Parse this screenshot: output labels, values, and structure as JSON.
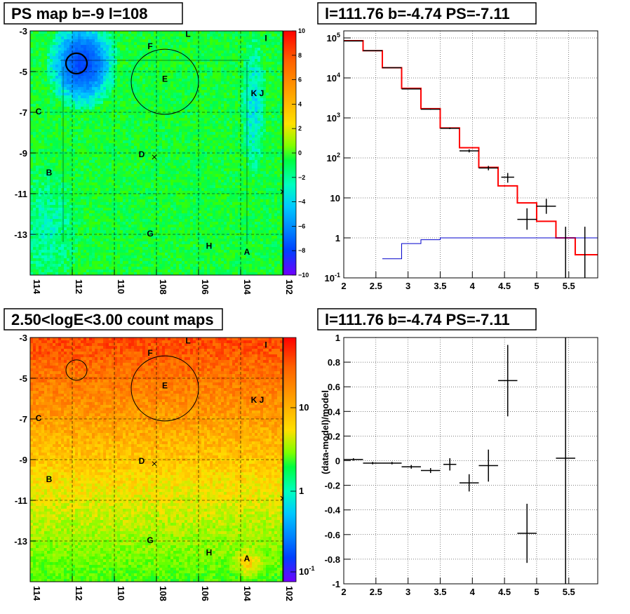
{
  "panels": {
    "tl": {
      "title": "PS map b=-9 l=108"
    },
    "tr": {
      "title": "l=111.76 b=-4.74 PS=-7.11"
    },
    "bl": {
      "title": "2.50<logE<3.00 count maps"
    },
    "br": {
      "title": "l=111.76 b=-4.74 PS=-7.11"
    }
  },
  "chart_data": [
    {
      "type": "heatmap",
      "title": "PS map b=-9 l=108",
      "x_ticks": [
        "114",
        "112",
        "110",
        "108",
        "106",
        "104",
        "102"
      ],
      "y_ticks": [
        "-3",
        "-5",
        "-7",
        "-9",
        "-11",
        "-13"
      ],
      "xlim": [
        114,
        102
      ],
      "ylim": [
        -15,
        -3
      ],
      "colorbar": {
        "min": -10,
        "max": 10,
        "ticks": [
          "10",
          "8",
          "6",
          "4",
          "2",
          "0",
          "−2",
          "−4",
          "−6",
          "−8",
          "−10"
        ]
      },
      "labels": [
        {
          "text": "L",
          "l": 106.5,
          "b": -3.3
        },
        {
          "text": "I",
          "l": 102.8,
          "b": -3.5
        },
        {
          "text": "F",
          "l": 108.3,
          "b": -3.9
        },
        {
          "text": "E",
          "l": 107.6,
          "b": -5.5
        },
        {
          "text": "K J",
          "l": 103.2,
          "b": -6.2
        },
        {
          "text": "C",
          "l": 113.6,
          "b": -7.1
        },
        {
          "text": "D",
          "l": 108.7,
          "b": -9.2
        },
        {
          "text": "B",
          "l": 113.1,
          "b": -10.1
        },
        {
          "text": "G",
          "l": 108.3,
          "b": -13.1
        },
        {
          "text": "H",
          "l": 105.5,
          "b": -13.7
        },
        {
          "text": "A",
          "l": 103.7,
          "b": -14.0
        }
      ],
      "circles": [
        {
          "l": 111.8,
          "b": -4.6,
          "r": 0.5
        },
        {
          "l": 107.6,
          "b": -5.5,
          "r": 1.6
        }
      ],
      "crosses": [
        {
          "l": 108.1,
          "b": -9.2
        },
        {
          "l": 102.0,
          "b": -10.9
        }
      ]
    },
    {
      "type": "line",
      "title": "l=111.76 b=-4.74 PS=-7.11",
      "y_scale": "log",
      "xlim": [
        2,
        5.95
      ],
      "ylim": [
        0.1,
        150000
      ],
      "x_ticks": [
        "2",
        "2.5",
        "3",
        "3.5",
        "4",
        "4.5",
        "5",
        "5.5"
      ],
      "y_ticks": [
        "10^-1",
        "1",
        "10",
        "10^2",
        "10^3",
        "10^4",
        "10^5"
      ],
      "series": [
        {
          "color": "#ff0000",
          "bins": [
            [
              2.0,
              2.3,
              85000
            ],
            [
              2.3,
              2.6,
              48000
            ],
            [
              2.6,
              2.9,
              18000
            ],
            [
              2.9,
              3.2,
              5500
            ],
            [
              3.2,
              3.5,
              1700
            ],
            [
              3.5,
              3.8,
              560
            ],
            [
              3.8,
              4.1,
              180
            ],
            [
              4.1,
              4.4,
              58
            ],
            [
              4.4,
              4.7,
              20
            ],
            [
              4.7,
              5.0,
              7.5
            ],
            [
              5.0,
              5.3,
              2.6
            ],
            [
              5.3,
              5.6,
              1.0
            ],
            [
              5.6,
              5.95,
              0.38
            ]
          ]
        },
        {
          "color": "#0000cc",
          "bins": [
            [
              2.6,
              2.9,
              0.3
            ],
            [
              2.9,
              3.2,
              0.72
            ],
            [
              3.2,
              3.5,
              0.9
            ],
            [
              3.5,
              5.95,
              1.0
            ]
          ]
        }
      ],
      "points": [
        {
          "x": 2.15,
          "y": 84000,
          "xerr": 0.15,
          "ylo": 83500,
          "yhi": 84500
        },
        {
          "x": 2.45,
          "y": 48000,
          "xerr": 0.15,
          "ylo": 47700,
          "yhi": 48300
        },
        {
          "x": 2.75,
          "y": 18000,
          "xerr": 0.15,
          "ylo": 17800,
          "yhi": 18200
        },
        {
          "x": 3.05,
          "y": 5300,
          "xerr": 0.15,
          "ylo": 5200,
          "yhi": 5400
        },
        {
          "x": 3.35,
          "y": 1650,
          "xerr": 0.15,
          "ylo": 1600,
          "yhi": 1700
        },
        {
          "x": 3.65,
          "y": 550,
          "xerr": 0.15,
          "ylo": 525,
          "yhi": 575
        },
        {
          "x": 3.95,
          "y": 150,
          "xerr": 0.15,
          "ylo": 137,
          "yhi": 163
        },
        {
          "x": 4.25,
          "y": 56,
          "xerr": 0.15,
          "ylo": 49,
          "yhi": 63
        },
        {
          "x": 4.55,
          "y": 33,
          "xerr": 0.1,
          "ylo": 24,
          "yhi": 42
        },
        {
          "x": 4.85,
          "y": 2.9,
          "xerr": 0.15,
          "ylo": 1.6,
          "yhi": 5.5
        },
        {
          "x": 5.15,
          "y": 6.2,
          "xerr": 0.15,
          "ylo": 4.0,
          "yhi": 9.5
        },
        {
          "x": 5.45,
          "y": 0.7,
          "xerr": 0.0,
          "ylo": 0.1,
          "yhi": 1.9
        },
        {
          "x": 5.75,
          "y": 0.7,
          "xerr": 0.0,
          "ylo": 0.1,
          "yhi": 1.9
        }
      ]
    },
    {
      "type": "heatmap",
      "title": "2.50<logE<3.00 count maps",
      "x_ticks": [
        "114",
        "112",
        "110",
        "108",
        "106",
        "104",
        "102"
      ],
      "y_ticks": [
        "-3",
        "-5",
        "-7",
        "-9",
        "-11",
        "-13"
      ],
      "colorbar": {
        "scale": "log",
        "ticks": [
          "10",
          "1",
          "10^-1"
        ]
      }
    },
    {
      "type": "scatter",
      "title": "l=111.76 b=-4.74 PS=-7.11",
      "ylabel": "(data-model)/model",
      "xlim": [
        2,
        5.95
      ],
      "ylim": [
        -1,
        1
      ],
      "x_ticks": [
        "2",
        "2.5",
        "3",
        "3.5",
        "4",
        "4.5",
        "5",
        "5.5"
      ],
      "y_ticks": [
        "1",
        "0.8",
        "0.6",
        "0.4",
        "0.2",
        "0",
        "-0.2",
        "-0.4",
        "-0.6",
        "-0.8",
        "-1"
      ],
      "points": [
        {
          "x": 2.15,
          "y": 0.01,
          "xerr": 0.15,
          "yerr": 0.01
        },
        {
          "x": 2.45,
          "y": -0.02,
          "xerr": 0.15,
          "yerr": 0.01
        },
        {
          "x": 2.75,
          "y": -0.02,
          "xerr": 0.15,
          "yerr": 0.01
        },
        {
          "x": 3.05,
          "y": -0.05,
          "xerr": 0.15,
          "yerr": 0.015
        },
        {
          "x": 3.35,
          "y": -0.08,
          "xerr": 0.15,
          "yerr": 0.02
        },
        {
          "x": 3.65,
          "y": -0.03,
          "xerr": 0.1,
          "yerr": 0.05
        },
        {
          "x": 3.95,
          "y": -0.18,
          "xerr": 0.15,
          "yerr": 0.07
        },
        {
          "x": 4.25,
          "y": -0.04,
          "xerr": 0.15,
          "yerr": 0.13
        },
        {
          "x": 4.55,
          "y": 0.65,
          "xerr": 0.15,
          "yerr": 0.29
        },
        {
          "x": 4.85,
          "y": -0.59,
          "xerr": 0.15,
          "yerr": 0.24
        },
        {
          "x": 5.45,
          "y": 0.02,
          "xerr": 0.15,
          "yerr": 1.2
        }
      ]
    }
  ]
}
